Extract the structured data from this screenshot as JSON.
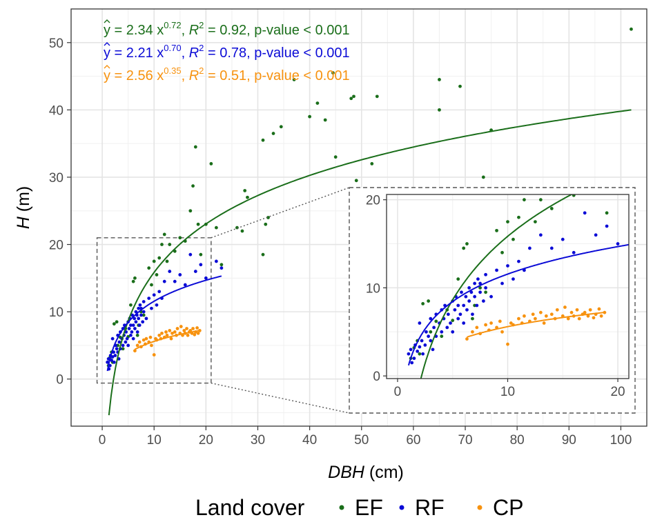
{
  "chart_data": {
    "type": "scatter",
    "xlabel_var": "DBH",
    "xlabel_unit": " (cm)",
    "ylabel_var": "H",
    "ylabel_unit": " (m)",
    "xlim": [
      -6,
      105
    ],
    "ylim": [
      -7,
      55
    ],
    "xticks": [
      0,
      10,
      20,
      30,
      40,
      50,
      60,
      70,
      80,
      90,
      100
    ],
    "yticks": [
      0,
      10,
      20,
      30,
      40,
      50
    ],
    "grid": true,
    "legend_title": "Land cover",
    "legend_position": "bottom",
    "series": [
      {
        "name": "EF",
        "color": "#1a6e1a",
        "equation": {
          "a": "2.34",
          "b": "0.72",
          "r2": "0.92",
          "p": "p-value < 0.001"
        },
        "fit": {
          "a": 2.34,
          "b": 0.72,
          "x_from": 1.3,
          "x_to": 102
        },
        "points": [
          [
            1.2,
            2.0
          ],
          [
            1.5,
            3.2
          ],
          [
            1.8,
            4.0
          ],
          [
            2.0,
            2.5
          ],
          [
            2.3,
            8.2
          ],
          [
            2.8,
            8.5
          ],
          [
            3.0,
            5.0
          ],
          [
            3.5,
            6.2
          ],
          [
            4.0,
            4.5
          ],
          [
            4.5,
            7.5
          ],
          [
            5.0,
            6.3
          ],
          [
            5.5,
            11.0
          ],
          [
            6.0,
            14.5
          ],
          [
            6.3,
            15.0
          ],
          [
            6.8,
            6.5
          ],
          [
            7.0,
            8.0
          ],
          [
            7.5,
            10.0
          ],
          [
            8.0,
            9.5
          ],
          [
            9.0,
            16.5
          ],
          [
            9.5,
            14.0
          ],
          [
            10.0,
            17.5
          ],
          [
            10.5,
            15.5
          ],
          [
            11.0,
            18.0
          ],
          [
            11.5,
            20.0
          ],
          [
            12.0,
            21.5
          ],
          [
            12.5,
            17.5
          ],
          [
            13.0,
            20.0
          ],
          [
            14.0,
            19.0
          ],
          [
            15.0,
            21.0
          ],
          [
            16.0,
            20.5
          ],
          [
            17.0,
            25.0
          ],
          [
            17.5,
            28.7
          ],
          [
            18.0,
            34.5
          ],
          [
            18.5,
            23.0
          ],
          [
            19.0,
            18.5
          ],
          [
            20.0,
            23.0
          ],
          [
            21.0,
            32.0
          ],
          [
            22.0,
            22.5
          ],
          [
            23.0,
            17.0
          ],
          [
            26.0,
            22.5
          ],
          [
            27.0,
            22.0
          ],
          [
            27.5,
            28.0
          ],
          [
            28.0,
            27.0
          ],
          [
            31.0,
            18.5
          ],
          [
            31.0,
            35.5
          ],
          [
            31.5,
            23.0
          ],
          [
            32.0,
            24.0
          ],
          [
            33.0,
            36.5
          ],
          [
            34.5,
            37.5
          ],
          [
            37.0,
            44.5
          ],
          [
            40.0,
            39.0
          ],
          [
            41.5,
            41.0
          ],
          [
            43.0,
            38.5
          ],
          [
            44.5,
            45.5
          ],
          [
            45.0,
            33.0
          ],
          [
            48.0,
            41.7
          ],
          [
            48.5,
            42.0
          ],
          [
            49.0,
            29.5
          ],
          [
            52.0,
            32.0
          ],
          [
            53.0,
            42.0
          ],
          [
            65.0,
            44.5
          ],
          [
            65.0,
            40.0
          ],
          [
            69.0,
            43.5
          ],
          [
            73.5,
            30.0
          ],
          [
            75.0,
            37.0
          ],
          [
            102.0,
            52.0
          ]
        ]
      },
      {
        "name": "RF",
        "color": "#0b0bd6",
        "equation": {
          "a": "2.21",
          "b": "0.70",
          "r2": "0.78",
          "p": "p-value < 0.001"
        },
        "fit": {
          "a": 2.21,
          "b": 0.7,
          "x_from": 1.0,
          "x_to": 23
        },
        "points": [
          [
            1.0,
            2.5
          ],
          [
            1.2,
            3.0
          ],
          [
            1.3,
            1.5
          ],
          [
            1.5,
            2.0
          ],
          [
            1.6,
            3.5
          ],
          [
            1.8,
            2.8
          ],
          [
            2.0,
            3.3
          ],
          [
            2.0,
            6.0
          ],
          [
            2.2,
            4.0
          ],
          [
            2.3,
            2.5
          ],
          [
            2.5,
            3.5
          ],
          [
            2.6,
            5.0
          ],
          [
            2.8,
            4.5
          ],
          [
            3.0,
            6.5
          ],
          [
            3.0,
            4.0
          ],
          [
            3.2,
            3.0
          ],
          [
            3.3,
            5.5
          ],
          [
            3.5,
            7.0
          ],
          [
            3.5,
            4.5
          ],
          [
            3.8,
            6.0
          ],
          [
            4.0,
            5.0
          ],
          [
            4.0,
            7.5
          ],
          [
            4.2,
            6.5
          ],
          [
            4.3,
            8.0
          ],
          [
            4.5,
            5.5
          ],
          [
            4.6,
            7.0
          ],
          [
            4.8,
            6.0
          ],
          [
            5.0,
            8.5
          ],
          [
            5.0,
            5.0
          ],
          [
            5.2,
            7.5
          ],
          [
            5.3,
            9.0
          ],
          [
            5.5,
            6.5
          ],
          [
            5.5,
            8.0
          ],
          [
            5.7,
            7.0
          ],
          [
            5.8,
            9.5
          ],
          [
            6.0,
            8.0
          ],
          [
            6.0,
            6.0
          ],
          [
            6.2,
            9.0
          ],
          [
            6.3,
            7.5
          ],
          [
            6.5,
            10.0
          ],
          [
            6.5,
            8.5
          ],
          [
            6.7,
            9.5
          ],
          [
            6.8,
            7.0
          ],
          [
            7.0,
            10.5
          ],
          [
            7.0,
            9.0
          ],
          [
            7.2,
            8.0
          ],
          [
            7.3,
            11.0
          ],
          [
            7.5,
            9.5
          ],
          [
            7.5,
            10.5
          ],
          [
            7.8,
            8.5
          ],
          [
            8.0,
            10.0
          ],
          [
            8.0,
            11.5
          ],
          [
            8.5,
            9.0
          ],
          [
            9.0,
            12.0
          ],
          [
            9.5,
            10.5
          ],
          [
            10.0,
            12.5
          ],
          [
            10.5,
            11.0
          ],
          [
            11.0,
            13.0
          ],
          [
            11.5,
            12.0
          ],
          [
            12.0,
            14.5
          ],
          [
            13.0,
            16.0
          ],
          [
            14.0,
            14.5
          ],
          [
            15.0,
            15.5
          ],
          [
            16.0,
            14.0
          ],
          [
            17.0,
            18.5
          ],
          [
            18.0,
            16.0
          ],
          [
            19.0,
            17.0
          ],
          [
            20.0,
            15.0
          ],
          [
            22.0,
            17.5
          ],
          [
            23.0,
            16.5
          ]
        ]
      },
      {
        "name": "CP",
        "color": "#f7920f",
        "equation": {
          "a": "2.56",
          "b": "0.35",
          "r2": "0.51",
          "p": "p-value < 0.001"
        },
        "fit": {
          "a": 2.56,
          "b": 0.35,
          "x_from": 6.3,
          "x_to": 18.8
        },
        "points": [
          [
            6.3,
            4.2
          ],
          [
            6.8,
            5.0
          ],
          [
            7.2,
            5.5
          ],
          [
            7.5,
            4.8
          ],
          [
            8.0,
            5.8
          ],
          [
            8.3,
            5.2
          ],
          [
            8.5,
            6.0
          ],
          [
            9.0,
            5.5
          ],
          [
            9.3,
            6.2
          ],
          [
            9.5,
            5.0
          ],
          [
            10.0,
            3.6
          ],
          [
            10.3,
            6.0
          ],
          [
            10.5,
            5.8
          ],
          [
            11.0,
            6.5
          ],
          [
            11.3,
            6.0
          ],
          [
            11.5,
            6.8
          ],
          [
            12.0,
            6.2
          ],
          [
            12.3,
            7.0
          ],
          [
            12.5,
            6.5
          ],
          [
            13.0,
            7.2
          ],
          [
            13.3,
            6.0
          ],
          [
            13.5,
            6.8
          ],
          [
            14.0,
            7.0
          ],
          [
            14.3,
            6.5
          ],
          [
            14.5,
            7.5
          ],
          [
            15.0,
            6.8
          ],
          [
            15.2,
            7.8
          ],
          [
            15.5,
            6.5
          ],
          [
            15.8,
            7.2
          ],
          [
            16.0,
            6.8
          ],
          [
            16.3,
            7.5
          ],
          [
            16.5,
            6.5
          ],
          [
            16.8,
            7.0
          ],
          [
            17.0,
            7.2
          ],
          [
            17.3,
            6.8
          ],
          [
            17.5,
            7.5
          ],
          [
            17.8,
            6.6
          ],
          [
            18.0,
            7.0
          ],
          [
            18.3,
            7.6
          ],
          [
            18.5,
            6.8
          ],
          [
            18.8,
            7.2
          ]
        ]
      }
    ],
    "inset": {
      "xlim": [
        -1,
        21
      ],
      "ylim": [
        -0.3,
        20.6
      ],
      "xticks": [
        0,
        10,
        20
      ],
      "yticks": [
        0,
        10,
        20
      ],
      "zoom_region": {
        "x": [
          -1,
          21
        ],
        "y": [
          -0.6,
          21
        ]
      }
    }
  }
}
